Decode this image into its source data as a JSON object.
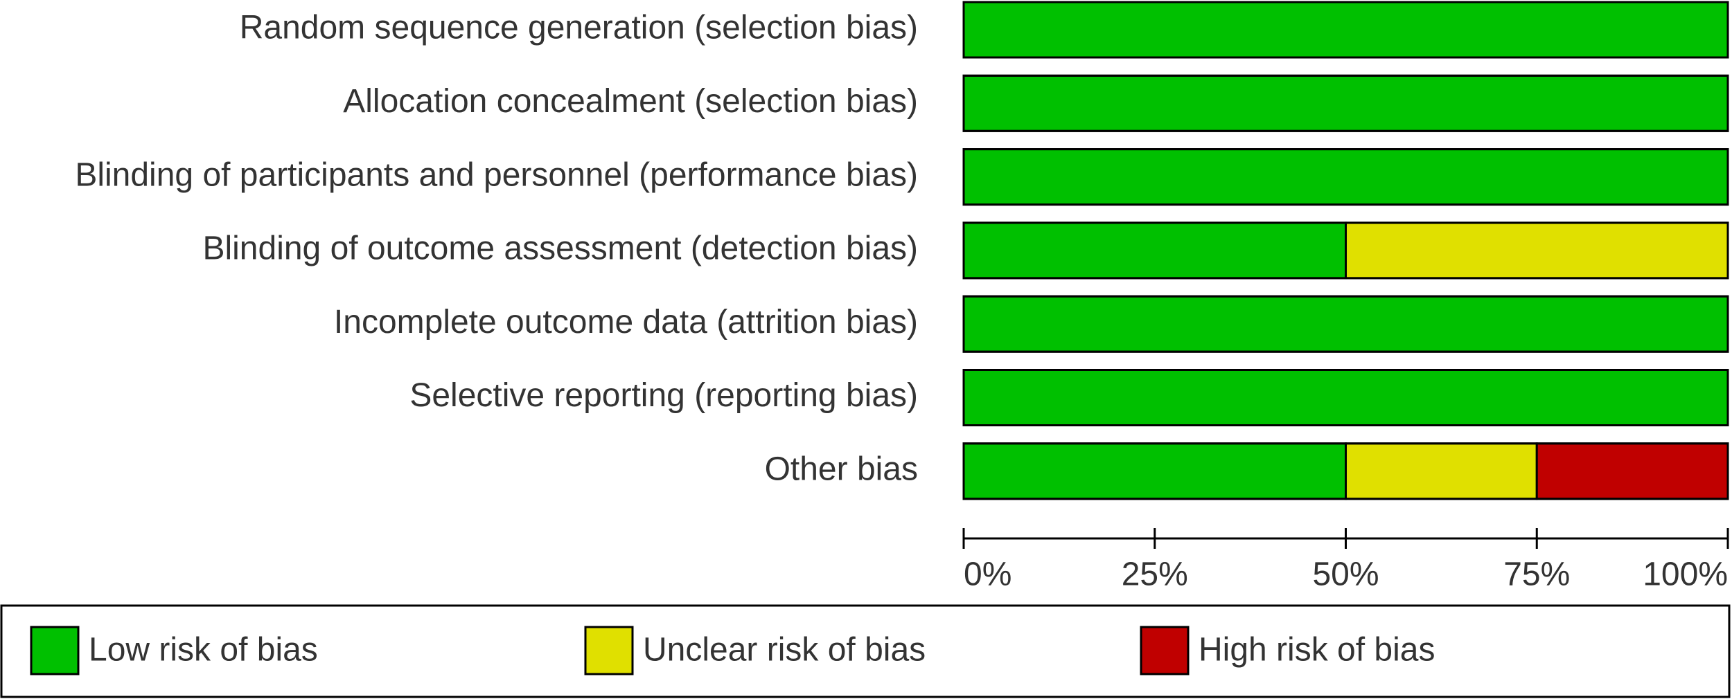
{
  "chart_data": {
    "type": "stacked-bar-horizontal",
    "categories": [
      "Random sequence generation (selection bias)",
      "Allocation concealment (selection bias)",
      "Blinding of participants and personnel (performance bias)",
      "Blinding of outcome assessment (detection bias)",
      "Incomplete outcome data (attrition bias)",
      "Selective reporting (reporting bias)",
      "Other bias"
    ],
    "series": [
      {
        "name": "Low risk of bias",
        "color": "#00c000",
        "values": [
          100,
          100,
          100,
          50,
          100,
          100,
          50
        ]
      },
      {
        "name": "Unclear risk of bias",
        "color": "#e0e000",
        "values": [
          0,
          0,
          0,
          50,
          0,
          0,
          25
        ]
      },
      {
        "name": "High risk of bias",
        "color": "#c00000",
        "values": [
          0,
          0,
          0,
          0,
          0,
          0,
          25
        ]
      }
    ],
    "xlim": [
      0,
      100
    ],
    "xticks": [
      {
        "value": 0,
        "label": "0%"
      },
      {
        "value": 25,
        "label": "25%"
      },
      {
        "value": 50,
        "label": "50%"
      },
      {
        "value": 75,
        "label": "75%"
      },
      {
        "value": 100,
        "label": "100%"
      }
    ],
    "legend": "bottom"
  }
}
